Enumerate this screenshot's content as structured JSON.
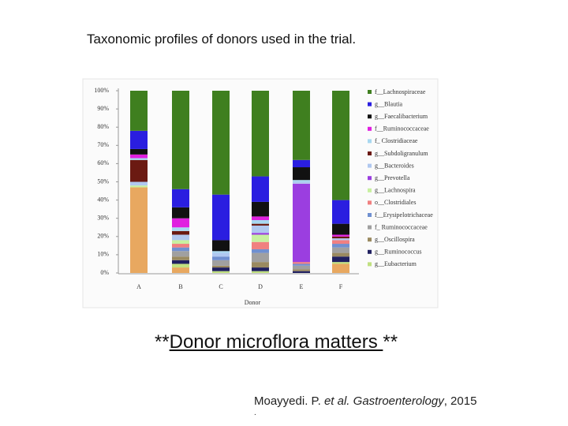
{
  "slide": {
    "title": "Taxonomic profiles of donors used in the trial.",
    "headline": [
      "**",
      "Donor microflora matters ",
      "**"
    ],
    "citation": [
      "Moayyedi. P. ",
      "et al.",
      "",
      " Gastroenterology",
      ", 2015"
    ],
    "footnote": "."
  },
  "chart_data": {
    "type": "stacked-bar",
    "x_label": "Donor",
    "categories": [
      "A",
      "B",
      "C",
      "D",
      "E",
      "F"
    ],
    "ylim": [
      0,
      100
    ],
    "yticks": [
      {
        "value": 0,
        "label": "0%"
      },
      {
        "value": 10,
        "label": "10%"
      },
      {
        "value": 20,
        "label": "20%"
      },
      {
        "value": 30,
        "label": "30%"
      },
      {
        "value": 40,
        "label": "40%"
      },
      {
        "value": 50,
        "label": "50%"
      },
      {
        "value": 60,
        "label": "60%"
      },
      {
        "value": 70,
        "label": "70%"
      },
      {
        "value": 80,
        "label": "80%"
      },
      {
        "value": 90,
        "label": "90%"
      },
      {
        "value": 100,
        "label": "100%"
      }
    ],
    "legend": "right",
    "series": [
      {
        "name": "f__Lachnospiraceae",
        "color": "#3f7f1f",
        "values": [
          22,
          54,
          57,
          47,
          38,
          60
        ]
      },
      {
        "name": "g__Blautia",
        "color": "#2a1ee0",
        "values": [
          10,
          10,
          25,
          14,
          4,
          13
        ]
      },
      {
        "name": "g__Faecalibacterium",
        "color": "#111111",
        "values": [
          3,
          6,
          6,
          8,
          7,
          6
        ]
      },
      {
        "name": "f__Ruminococcaceae",
        "color": "#e020e0",
        "values": [
          2,
          5,
          0,
          2,
          0,
          1
        ]
      },
      {
        "name": "f_ Clostridiaceae",
        "color": "#a8d8f0",
        "values": [
          1,
          2,
          1,
          2,
          1,
          0
        ]
      },
      {
        "name": "g__Subdoligranulum",
        "color": "#6b1a12",
        "values": [
          12,
          2,
          0,
          1,
          0,
          1
        ]
      },
      {
        "name": "g__Bacteroides",
        "color": "#b0c8f0",
        "values": [
          2,
          3,
          2,
          4,
          1,
          1
        ]
      },
      {
        "name": "g__Prevotella",
        "color": "#9b3ee0",
        "values": [
          0,
          0,
          0,
          1,
          43,
          0
        ]
      },
      {
        "name": "g__Lachnospira",
        "color": "#c8f0a0",
        "values": [
          1,
          2,
          0,
          4,
          0,
          0
        ]
      },
      {
        "name": "o__Clostridiales",
        "color": "#f08080",
        "values": [
          0,
          2,
          0,
          4,
          1,
          2
        ]
      },
      {
        "name": "f__Erysipelotrichaceae",
        "color": "#7090d0",
        "values": [
          0,
          2,
          2,
          2,
          1,
          2
        ]
      },
      {
        "name": "f_ Ruminococcaceae",
        "color": "#a0a0a0",
        "values": [
          0,
          3,
          3,
          5,
          2,
          3
        ]
      },
      {
        "name": "g__Oscillospira",
        "color": "#9a8a60",
        "values": [
          0,
          2,
          1,
          3,
          1,
          2
        ]
      },
      {
        "name": "g__Ruminococcus",
        "color": "#202060",
        "values": [
          0,
          2,
          2,
          2,
          1,
          3
        ]
      },
      {
        "name": "g__Eubacterium",
        "color": "#c0e080",
        "values": [
          0,
          2,
          1,
          1,
          0,
          1
        ]
      },
      {
        "name": null,
        "color": "#e8a860",
        "values": [
          47,
          3,
          0,
          0,
          0,
          5
        ]
      }
    ]
  }
}
